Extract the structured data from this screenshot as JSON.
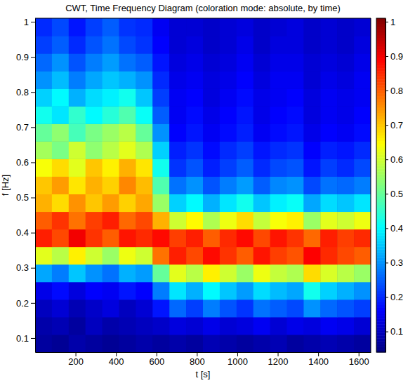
{
  "chart_data": {
    "type": "heatmap",
    "title": "CWT, Time Frequency Diagram (coloration mode: absolute, by time)",
    "x_label": "t [s]",
    "y_label": "f [Hz]",
    "xlim": [
      0,
      1660
    ],
    "ylim": [
      0.06,
      1.01
    ],
    "xticks": [
      200,
      400,
      600,
      800,
      1000,
      1200,
      1400,
      1600
    ],
    "yticks": [
      0.1,
      0.2,
      0.3,
      0.4,
      0.5,
      0.6,
      0.7,
      0.8,
      0.9,
      1
    ],
    "x_edges": [
      0,
      83,
      166,
      249,
      332,
      415,
      498,
      581,
      664,
      747,
      830,
      913,
      996,
      1079,
      1162,
      1245,
      1328,
      1411,
      1494,
      1577,
      1660
    ],
    "y_edges": [
      0.06,
      0.11,
      0.16,
      0.21,
      0.26,
      0.31,
      0.36,
      0.41,
      0.46,
      0.51,
      0.56,
      0.61,
      0.66,
      0.71,
      0.76,
      0.81,
      0.86,
      0.91,
      0.96,
      1.01
    ],
    "cells": [
      [
        0.07,
        0.06,
        0.08,
        0.07,
        0.06,
        0.07,
        0.08,
        0.07,
        0.08,
        0.07,
        0.09,
        0.08,
        0.07,
        0.08,
        0.09,
        0.07,
        0.08,
        0.09,
        0.08,
        0.07
      ],
      [
        0.08,
        0.09,
        0.07,
        0.1,
        0.08,
        0.09,
        0.1,
        0.11,
        0.13,
        0.12,
        0.14,
        0.12,
        0.13,
        0.15,
        0.12,
        0.14,
        0.13,
        0.15,
        0.14,
        0.12
      ],
      [
        0.1,
        0.12,
        0.09,
        0.11,
        0.13,
        0.1,
        0.12,
        0.18,
        0.26,
        0.22,
        0.28,
        0.24,
        0.21,
        0.27,
        0.25,
        0.23,
        0.3,
        0.26,
        0.24,
        0.22
      ],
      [
        0.14,
        0.17,
        0.13,
        0.16,
        0.15,
        0.18,
        0.16,
        0.28,
        0.38,
        0.33,
        0.4,
        0.35,
        0.31,
        0.37,
        0.34,
        0.32,
        0.42,
        0.36,
        0.33,
        0.3
      ],
      [
        0.32,
        0.28,
        0.35,
        0.3,
        0.27,
        0.33,
        0.31,
        0.5,
        0.62,
        0.58,
        0.66,
        0.6,
        0.55,
        0.63,
        0.59,
        0.57,
        0.68,
        0.61,
        0.58,
        0.55
      ],
      [
        0.62,
        0.58,
        0.66,
        0.6,
        0.55,
        0.63,
        0.6,
        0.78,
        0.86,
        0.82,
        0.88,
        0.84,
        0.8,
        0.87,
        0.83,
        0.81,
        0.89,
        0.85,
        0.82,
        0.8
      ],
      [
        0.86,
        0.82,
        0.9,
        0.84,
        0.8,
        0.87,
        0.85,
        0.88,
        0.83,
        0.86,
        0.8,
        0.85,
        0.88,
        0.82,
        0.87,
        0.84,
        0.79,
        0.86,
        0.83,
        0.85
      ],
      [
        0.8,
        0.84,
        0.78,
        0.83,
        0.86,
        0.79,
        0.82,
        0.72,
        0.6,
        0.65,
        0.57,
        0.63,
        0.68,
        0.59,
        0.64,
        0.66,
        0.55,
        0.62,
        0.6,
        0.63
      ],
      [
        0.72,
        0.68,
        0.75,
        0.7,
        0.74,
        0.69,
        0.73,
        0.55,
        0.36,
        0.4,
        0.33,
        0.38,
        0.42,
        0.35,
        0.39,
        0.41,
        0.32,
        0.37,
        0.35,
        0.38
      ],
      [
        0.7,
        0.74,
        0.67,
        0.72,
        0.69,
        0.76,
        0.71,
        0.48,
        0.27,
        0.3,
        0.24,
        0.28,
        0.31,
        0.25,
        0.29,
        0.3,
        0.23,
        0.27,
        0.26,
        0.28
      ],
      [
        0.64,
        0.68,
        0.62,
        0.7,
        0.66,
        0.72,
        0.67,
        0.42,
        0.21,
        0.24,
        0.19,
        0.22,
        0.25,
        0.2,
        0.23,
        0.24,
        0.18,
        0.22,
        0.2,
        0.23
      ],
      [
        0.56,
        0.52,
        0.6,
        0.54,
        0.58,
        0.62,
        0.57,
        0.36,
        0.19,
        0.21,
        0.17,
        0.2,
        0.22,
        0.18,
        0.2,
        0.21,
        0.16,
        0.19,
        0.18,
        0.2
      ],
      [
        0.5,
        0.54,
        0.47,
        0.52,
        0.55,
        0.58,
        0.5,
        0.3,
        0.16,
        0.18,
        0.15,
        0.17,
        0.19,
        0.15,
        0.17,
        0.18,
        0.14,
        0.16,
        0.15,
        0.17
      ],
      [
        0.42,
        0.38,
        0.45,
        0.4,
        0.44,
        0.48,
        0.41,
        0.25,
        0.15,
        0.17,
        0.14,
        0.16,
        0.18,
        0.14,
        0.16,
        0.17,
        0.13,
        0.15,
        0.14,
        0.16
      ],
      [
        0.36,
        0.4,
        0.33,
        0.37,
        0.39,
        0.42,
        0.35,
        0.22,
        0.15,
        0.16,
        0.13,
        0.15,
        0.17,
        0.14,
        0.15,
        0.16,
        0.13,
        0.15,
        0.14,
        0.15
      ],
      [
        0.3,
        0.34,
        0.28,
        0.32,
        0.35,
        0.33,
        0.3,
        0.2,
        0.14,
        0.15,
        0.13,
        0.14,
        0.16,
        0.13,
        0.15,
        0.15,
        0.12,
        0.14,
        0.13,
        0.15
      ],
      [
        0.26,
        0.3,
        0.24,
        0.28,
        0.31,
        0.27,
        0.25,
        0.18,
        0.13,
        0.14,
        0.12,
        0.13,
        0.15,
        0.12,
        0.14,
        0.14,
        0.12,
        0.13,
        0.12,
        0.14
      ],
      [
        0.22,
        0.25,
        0.2,
        0.24,
        0.27,
        0.23,
        0.21,
        0.16,
        0.12,
        0.13,
        0.11,
        0.12,
        0.14,
        0.11,
        0.13,
        0.13,
        0.11,
        0.12,
        0.11,
        0.13
      ],
      [
        0.2,
        0.23,
        0.18,
        0.22,
        0.25,
        0.21,
        0.2,
        0.15,
        0.12,
        0.12,
        0.11,
        0.12,
        0.13,
        0.11,
        0.12,
        0.13,
        0.11,
        0.12,
        0.11,
        0.12
      ]
    ],
    "colorbar_lim": [
      0.04,
      1.01
    ],
    "colorbar_ticks": [
      0.1,
      0.2,
      0.3,
      0.4,
      0.5,
      0.6,
      0.7,
      0.8,
      0.9,
      1
    ]
  }
}
